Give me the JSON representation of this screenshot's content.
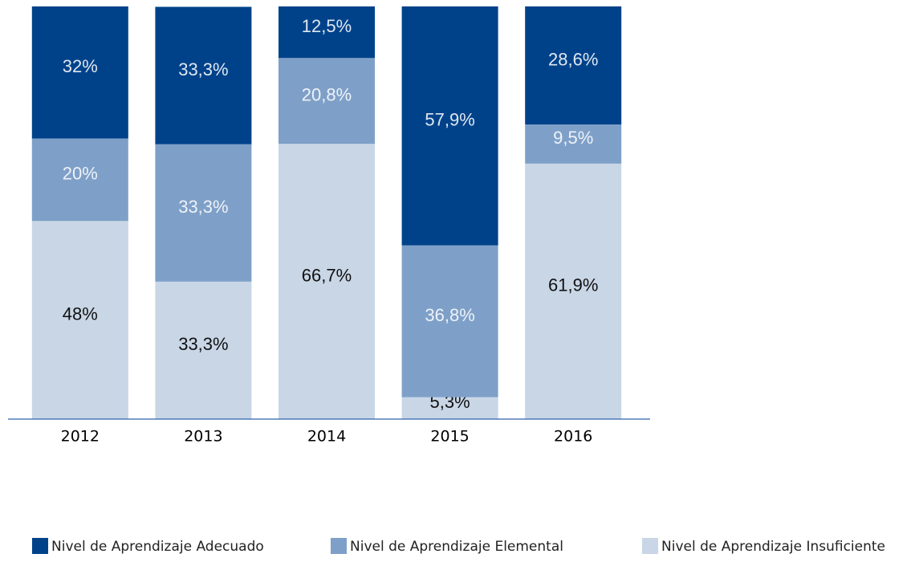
{
  "chart_data": {
    "type": "bar",
    "stacked": true,
    "categories": [
      "2012",
      "2013",
      "2014",
      "2015",
      "2016"
    ],
    "series": [
      {
        "name": "Nivel de Aprendizaje Insuficiente",
        "color": "#c8d6e6",
        "label_color": "#111111",
        "values": [
          48,
          33.3,
          66.7,
          5.3,
          61.9
        ],
        "value_labels": [
          "48%",
          "33,3%",
          "66,7%",
          "5,3%",
          "61,9%"
        ]
      },
      {
        "name": "Nivel de Aprendizaje Elemental",
        "color": "#7ea0c8",
        "label_color": "#eef2f8",
        "values": [
          20,
          33.3,
          20.8,
          36.8,
          9.5
        ],
        "value_labels": [
          "20%",
          "33,3%",
          "20,8%",
          "36,8%",
          "9,5%"
        ]
      },
      {
        "name": "Nivel de Aprendizaje Adecuado",
        "color": "#00428a",
        "label_color": "#dfe7f1",
        "values": [
          32,
          33.3,
          12.5,
          57.9,
          28.6
        ],
        "value_labels": [
          "32%",
          "33,3%",
          "12,5%",
          "57,9%",
          "28,6%"
        ]
      }
    ],
    "legend_order": [
      2,
      1,
      0
    ]
  }
}
